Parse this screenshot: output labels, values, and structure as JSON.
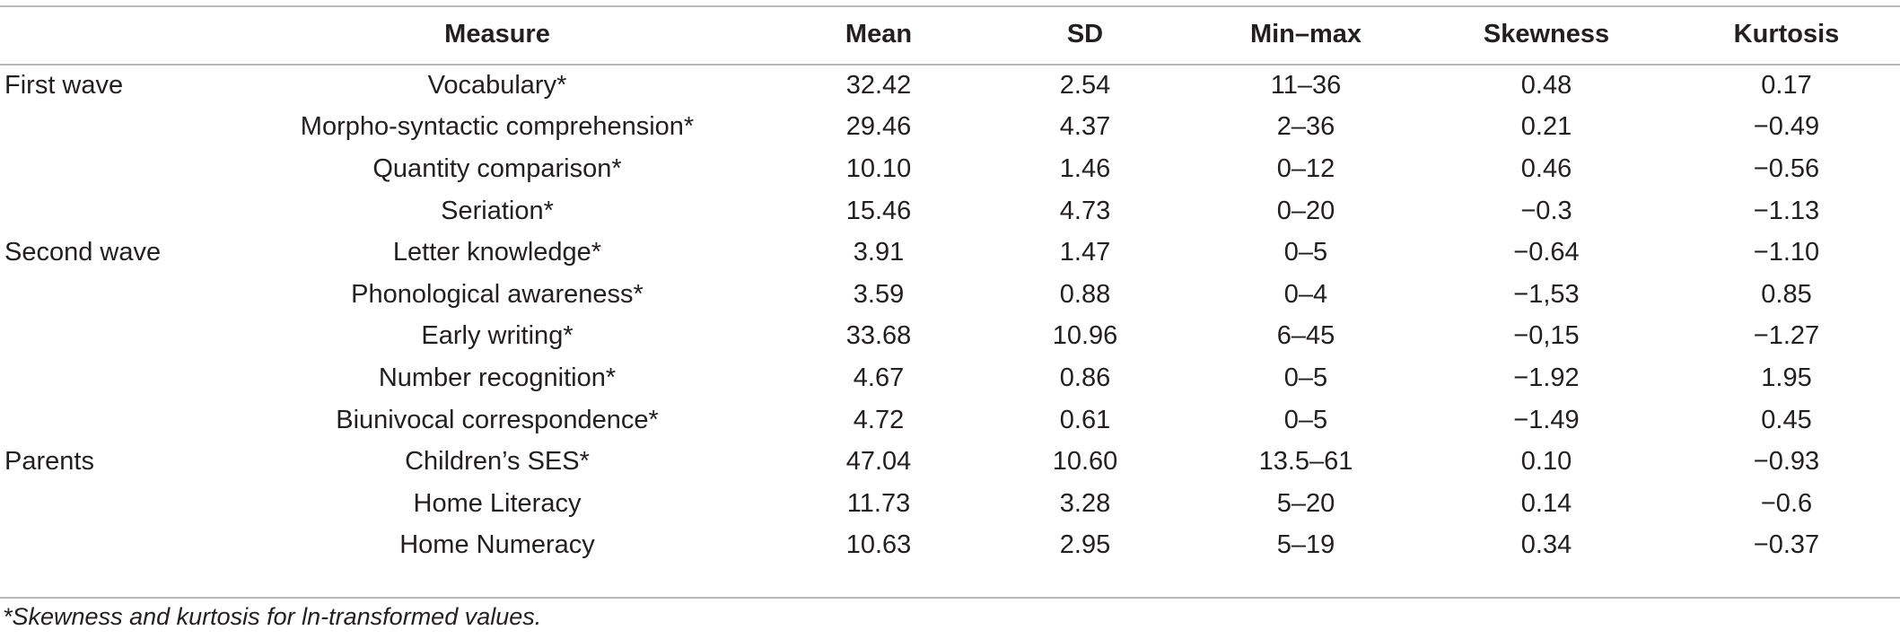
{
  "table": {
    "columns": [
      "",
      "Measure",
      "Mean",
      "SD",
      "Min–max",
      "Skewness",
      "Kurtosis"
    ],
    "rows": [
      {
        "group": "First wave",
        "measure": "Vocabulary*",
        "mean": "32.42",
        "sd": "2.54",
        "minmax": "11–36",
        "skewness": "0.48",
        "kurtosis": "0.17"
      },
      {
        "group": "",
        "measure": "Morpho-syntactic comprehension*",
        "mean": "29.46",
        "sd": "4.37",
        "minmax": "2–36",
        "skewness": "0.21",
        "kurtosis": "−0.49"
      },
      {
        "group": "",
        "measure": "Quantity comparison*",
        "mean": "10.10",
        "sd": "1.46",
        "minmax": "0–12",
        "skewness": "0.46",
        "kurtosis": "−0.56"
      },
      {
        "group": "",
        "measure": "Seriation*",
        "mean": "15.46",
        "sd": "4.73",
        "minmax": "0–20",
        "skewness": "−0.3",
        "kurtosis": "−1.13"
      },
      {
        "group": "Second wave",
        "measure": "Letter knowledge*",
        "mean": "3.91",
        "sd": "1.47",
        "minmax": "0–5",
        "skewness": "−0.64",
        "kurtosis": "−1.10"
      },
      {
        "group": "",
        "measure": "Phonological awareness*",
        "mean": "3.59",
        "sd": "0.88",
        "minmax": "0–4",
        "skewness": "−1,53",
        "kurtosis": "0.85"
      },
      {
        "group": "",
        "measure": "Early writing*",
        "mean": "33.68",
        "sd": "10.96",
        "minmax": "6–45",
        "skewness": "−0,15",
        "kurtosis": "−1.27"
      },
      {
        "group": "",
        "measure": "Number recognition*",
        "mean": "4.67",
        "sd": "0.86",
        "minmax": "0–5",
        "skewness": "−1.92",
        "kurtosis": "1.95"
      },
      {
        "group": "",
        "measure": "Biunivocal correspondence*",
        "mean": "4.72",
        "sd": "0.61",
        "minmax": "0–5",
        "skewness": "−1.49",
        "kurtosis": "0.45"
      },
      {
        "group": "Parents",
        "measure": "Children’s SES*",
        "mean": "47.04",
        "sd": "10.60",
        "minmax": "13.5–61",
        "skewness": "0.10",
        "kurtosis": "−0.93"
      },
      {
        "group": "",
        "measure": "Home Literacy",
        "mean": "11.73",
        "sd": "3.28",
        "minmax": "5–20",
        "skewness": "0.14",
        "kurtosis": "−0.6"
      },
      {
        "group": "",
        "measure": "Home Numeracy",
        "mean": "10.63",
        "sd": "2.95",
        "minmax": "5–19",
        "skewness": "0.34",
        "kurtosis": "−0.37"
      }
    ]
  },
  "footnote": "*Skewness and kurtosis for ln-transformed values."
}
